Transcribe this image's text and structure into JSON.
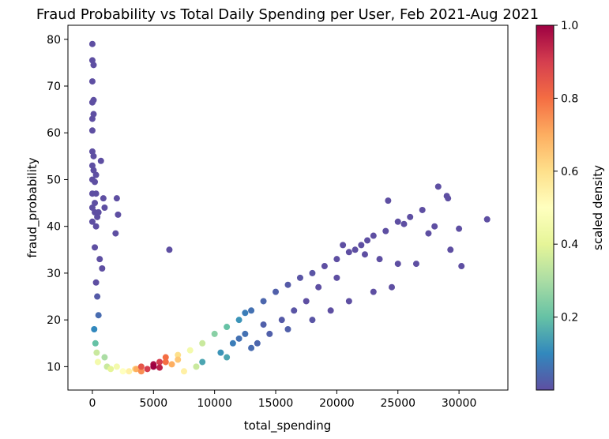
{
  "chart_data": {
    "type": "scatter",
    "title": "Fraud Probability vs Total Daily Spending per User, Feb 2021-Aug 2021",
    "xlabel": "total_spending",
    "ylabel": "fraud_probability",
    "xlim": [
      -2000,
      34000
    ],
    "ylim": [
      5,
      83
    ],
    "xticks": [
      0,
      5000,
      10000,
      15000,
      20000,
      25000,
      30000
    ],
    "yticks": [
      10,
      20,
      30,
      40,
      50,
      60,
      70,
      80
    ],
    "grid": false,
    "colormap": "Spectral_r",
    "colorbar": {
      "label": "scaled density",
      "range": [
        0,
        1
      ],
      "ticks": [
        0.2,
        0.4,
        0.6,
        0.8,
        1.0
      ],
      "tick_labels": [
        "0.2",
        "0.4",
        "0.6",
        "0.8",
        "1.0"
      ],
      "stops": [
        "#5e4fa2",
        "#3288bd",
        "#66c2a5",
        "#abdda4",
        "#e6f598",
        "#ffffbf",
        "#fee08b",
        "#fdae61",
        "#f46d43",
        "#d53e4f",
        "#9e0142"
      ]
    },
    "series": [
      {
        "x": [
          0,
          0,
          0,
          0,
          0,
          0,
          0,
          0,
          0,
          0,
          0,
          0,
          100,
          100,
          100,
          100,
          100,
          200,
          200,
          200,
          300,
          300,
          300,
          400,
          500,
          700,
          900,
          1000,
          2000,
          2100,
          6300,
          1900,
          600,
          800,
          300,
          200,
          400,
          500,
          150,
          250,
          350,
          450,
          1000,
          1200,
          1500,
          2000,
          2500,
          3000,
          3600,
          4000,
          5000,
          5500,
          6000,
          7000,
          8000,
          9000,
          10000,
          11000,
          12000,
          12500,
          13000,
          14000,
          15000,
          16000,
          17000,
          18000,
          19000,
          20000,
          21000,
          22000,
          22500,
          23000,
          24000,
          24200,
          25000,
          25500,
          26000,
          27000,
          28000,
          28300,
          29000,
          29100,
          30000,
          30200,
          32300,
          20500,
          21500,
          22300,
          23500,
          26500,
          27500,
          29300,
          18500,
          17500,
          16500,
          15500,
          14500,
          13500,
          16000,
          18000,
          19500,
          21000,
          23000,
          24500,
          9000,
          10500,
          11500,
          12000,
          13000,
          7500,
          8500,
          14000,
          11000,
          12500,
          20000,
          25000,
          5000,
          5500,
          4500,
          6500,
          4000,
          6000,
          3500,
          7000
        ],
        "y": [
          79,
          75.5,
          71,
          66.5,
          63,
          60.5,
          56,
          53,
          50,
          47,
          44,
          41,
          74.5,
          67,
          64,
          55,
          52,
          45,
          43,
          49.5,
          51,
          47,
          40,
          42,
          43,
          54,
          46,
          44,
          46,
          42.5,
          35,
          38.5,
          33,
          31,
          28,
          35.5,
          25,
          21,
          18,
          15,
          13,
          11,
          12,
          10,
          9.5,
          10,
          9,
          9,
          9.5,
          10,
          10,
          9.8,
          11,
          12.5,
          13.5,
          15,
          17,
          18.5,
          20,
          21.5,
          22,
          24,
          26,
          27.5,
          29,
          30,
          31.5,
          33,
          34.5,
          36,
          37,
          38,
          39,
          45.5,
          41,
          40.5,
          42,
          43.5,
          40,
          48.5,
          46.5,
          46,
          39.5,
          31.5,
          41.5,
          36,
          35,
          34,
          33,
          32,
          38.5,
          35,
          27,
          24,
          22,
          20,
          17,
          15,
          18,
          20,
          22,
          24,
          26,
          27,
          11,
          13,
          15,
          16,
          14,
          9,
          10,
          19,
          12,
          17,
          29,
          32,
          10.5,
          11,
          9.5,
          10.5,
          9,
          12,
          9.5,
          11.5
        ],
        "density": [
          0,
          0,
          0,
          0,
          0,
          0,
          0,
          0,
          0,
          0,
          0,
          0,
          0,
          0,
          0,
          0,
          0,
          0,
          0,
          0,
          0,
          0,
          0,
          0,
          0,
          0,
          0,
          0,
          0,
          0,
          0,
          0,
          0,
          0,
          0,
          0,
          0.02,
          0.05,
          0.1,
          0.2,
          0.35,
          0.45,
          0.3,
          0.35,
          0.4,
          0.45,
          0.5,
          0.55,
          0.7,
          0.85,
          1.0,
          0.95,
          0.8,
          0.6,
          0.45,
          0.35,
          0.25,
          0.2,
          0.12,
          0.08,
          0.06,
          0.04,
          0.03,
          0.02,
          0.01,
          0.01,
          0,
          0,
          0,
          0,
          0,
          0,
          0,
          0,
          0,
          0,
          0,
          0,
          0,
          0,
          0,
          0,
          0,
          0,
          0,
          0,
          0,
          0,
          0,
          0,
          0,
          0,
          0,
          0,
          0.01,
          0.02,
          0.03,
          0.04,
          0.03,
          0.01,
          0,
          0,
          0,
          0,
          0.15,
          0.12,
          0.08,
          0.06,
          0.05,
          0.55,
          0.35,
          0.03,
          0.15,
          0.06,
          0,
          0,
          0.98,
          0.9,
          0.9,
          0.7,
          0.75,
          0.8,
          0.6,
          0.65
        ]
      }
    ]
  }
}
